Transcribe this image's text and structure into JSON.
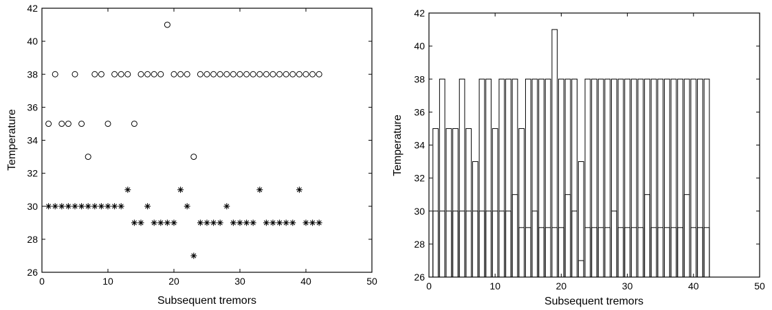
{
  "chart_data": [
    {
      "type": "scatter",
      "title": "",
      "xlabel": "Subsequent tremors",
      "ylabel": "Temperature",
      "xlim": [
        0,
        50
      ],
      "ylim": [
        26,
        42
      ],
      "xticks": [
        "0",
        "10",
        "20",
        "30",
        "40",
        "50"
      ],
      "yticks": [
        "26",
        "28",
        "30",
        "32",
        "34",
        "36",
        "38",
        "40",
        "42"
      ],
      "grid": false,
      "x": [
        1,
        2,
        3,
        4,
        5,
        6,
        7,
        8,
        9,
        10,
        11,
        12,
        13,
        14,
        15,
        16,
        17,
        18,
        19,
        20,
        21,
        22,
        23,
        24,
        25,
        26,
        27,
        28,
        29,
        30,
        31,
        32,
        33,
        34,
        35,
        36,
        37,
        38,
        39,
        40,
        41,
        42
      ],
      "series": [
        {
          "marker": "circle",
          "values": [
            35,
            38,
            35,
            35,
            38,
            35,
            33,
            38,
            38,
            35,
            38,
            38,
            38,
            35,
            38,
            38,
            38,
            38,
            41,
            38,
            38,
            38,
            33,
            38,
            38,
            38,
            38,
            38,
            38,
            38,
            38,
            38,
            38,
            38,
            38,
            38,
            38,
            38,
            38,
            38,
            38,
            38
          ]
        },
        {
          "marker": "asterisk",
          "values": [
            30,
            30,
            30,
            30,
            30,
            30,
            30,
            30,
            30,
            30,
            30,
            30,
            31,
            29,
            29,
            30,
            29,
            29,
            29,
            29,
            31,
            30,
            27,
            29,
            29,
            29,
            29,
            30,
            29,
            29,
            29,
            29,
            31,
            29,
            29,
            29,
            29,
            29,
            31,
            29,
            29,
            29
          ]
        }
      ]
    },
    {
      "type": "bar",
      "title": "",
      "xlabel": "Subsequent tremors",
      "ylabel": "Temperature",
      "xlim": [
        0,
        50
      ],
      "ylim": [
        26,
        42
      ],
      "xticks": [
        "0",
        "10",
        "20",
        "30",
        "40",
        "50"
      ],
      "yticks": [
        "26",
        "28",
        "30",
        "32",
        "34",
        "36",
        "38",
        "40",
        "42"
      ],
      "grid": false,
      "x": [
        1,
        2,
        3,
        4,
        5,
        6,
        7,
        8,
        9,
        10,
        11,
        12,
        13,
        14,
        15,
        16,
        17,
        18,
        19,
        20,
        21,
        22,
        23,
        24,
        25,
        26,
        27,
        28,
        29,
        30,
        31,
        32,
        33,
        34,
        35,
        36,
        37,
        38,
        39,
        40,
        41,
        42
      ],
      "series": [
        {
          "style": "outline",
          "values": [
            35,
            38,
            35,
            35,
            38,
            35,
            33,
            38,
            38,
            35,
            38,
            38,
            38,
            35,
            38,
            38,
            38,
            38,
            41,
            38,
            38,
            38,
            33,
            38,
            38,
            38,
            38,
            38,
            38,
            38,
            38,
            38,
            38,
            38,
            38,
            38,
            38,
            38,
            38,
            38,
            38,
            38
          ]
        },
        {
          "style": "outline",
          "values": [
            30,
            30,
            30,
            30,
            30,
            30,
            30,
            30,
            30,
            30,
            30,
            30,
            31,
            29,
            29,
            30,
            29,
            29,
            29,
            29,
            31,
            30,
            27,
            29,
            29,
            29,
            29,
            30,
            29,
            29,
            29,
            29,
            31,
            29,
            29,
            29,
            29,
            29,
            31,
            29,
            29,
            29
          ]
        }
      ]
    }
  ]
}
